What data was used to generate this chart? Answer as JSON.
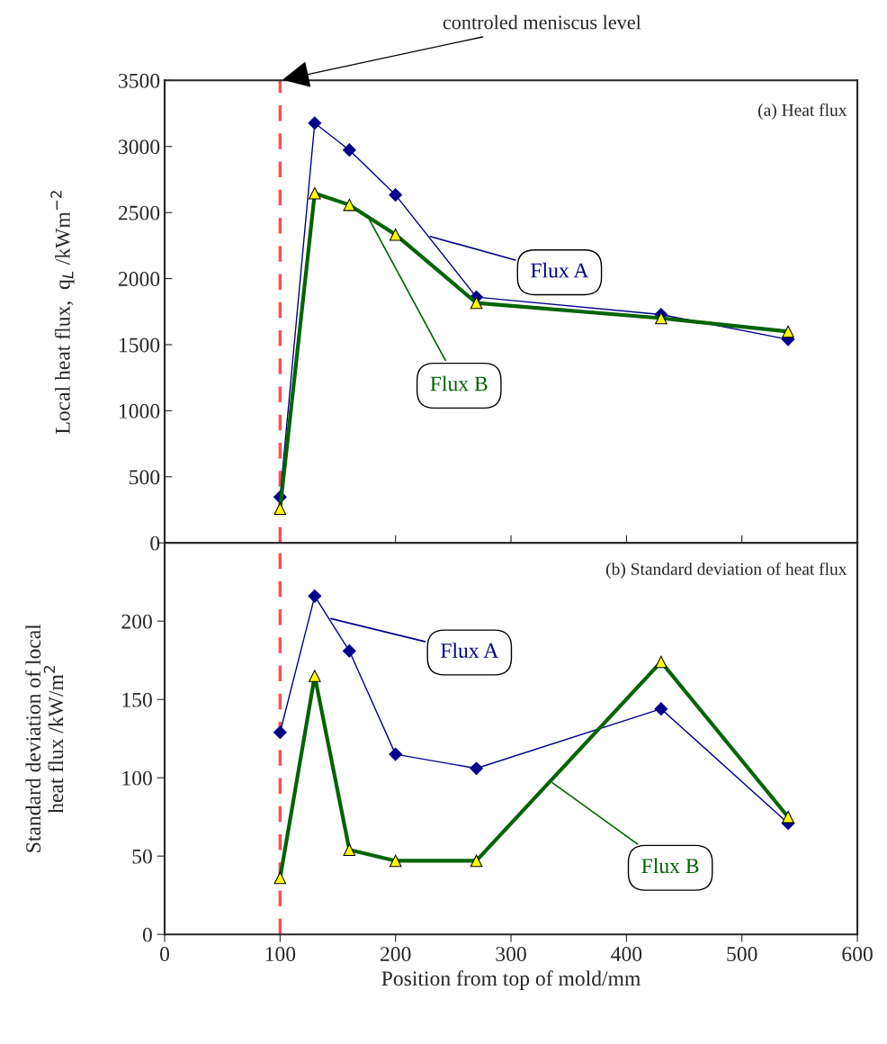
{
  "chart_data": [
    {
      "type": "line",
      "title": "(a) Heat flux",
      "ylabel": "Local heat flux,  q$_{L}$ /kWm$^{−2}$",
      "x": [
        100,
        130,
        160,
        200,
        270,
        430,
        540
      ],
      "series": [
        {
          "name": "Flux A",
          "color": "#00008b",
          "marker": "diamond",
          "values": [
            347,
            3177,
            2973,
            2633,
            1860,
            1728,
            1540
          ]
        },
        {
          "name": "Flux B",
          "color": "#006400",
          "marker": "triangle",
          "values": [
            258,
            2646,
            2558,
            2333,
            1816,
            1701,
            1599
          ]
        }
      ],
      "xlim": [
        0,
        600
      ],
      "xticks": [
        0,
        100,
        200,
        300,
        400,
        500,
        600
      ],
      "ylim": [
        0,
        3500
      ],
      "yticks": [
        0,
        500,
        1000,
        1500,
        2000,
        2500,
        3000,
        3500
      ],
      "tick_labels": "y",
      "grid": false,
      "legend": false,
      "line_style": "solid",
      "ref_lines": [
        {
          "axis": "x",
          "value": 100,
          "color": "#ff5050",
          "line_style": "dashed"
        }
      ],
      "annotations": [
        {
          "text": "controled meniscus level",
          "x": 100,
          "y": 3500
        }
      ]
    },
    {
      "type": "line",
      "title": "(b) Standard deviation of heat flux",
      "xlabel": "Position from top of mold/mm",
      "ylabel": "Standard deviation of local\nheat flux /kW/m$^{2}$",
      "x": [
        100,
        130,
        160,
        200,
        270,
        430,
        540
      ],
      "series": [
        {
          "name": "Flux A",
          "color": "#00008b",
          "marker": "diamond",
          "values": [
            129,
            216,
            181,
            115,
            106,
            144,
            71
          ]
        },
        {
          "name": "Flux B",
          "color": "#006400",
          "marker": "triangle",
          "values": [
            36,
            165,
            54,
            47,
            47,
            174,
            75
          ]
        }
      ],
      "xlim": [
        0,
        600
      ],
      "xticks": [
        0,
        100,
        200,
        300,
        400,
        500,
        600
      ],
      "ylim": [
        0,
        250
      ],
      "yticks": [
        0,
        50,
        100,
        150,
        200,
        {
          "value": 250,
          "label": null
        }
      ],
      "grid": false,
      "legend": false,
      "line_style": "solid",
      "ref_lines": [
        {
          "axis": "x",
          "value": 100,
          "color": "#ff5050",
          "line_style": "dashed"
        }
      ]
    }
  ]
}
